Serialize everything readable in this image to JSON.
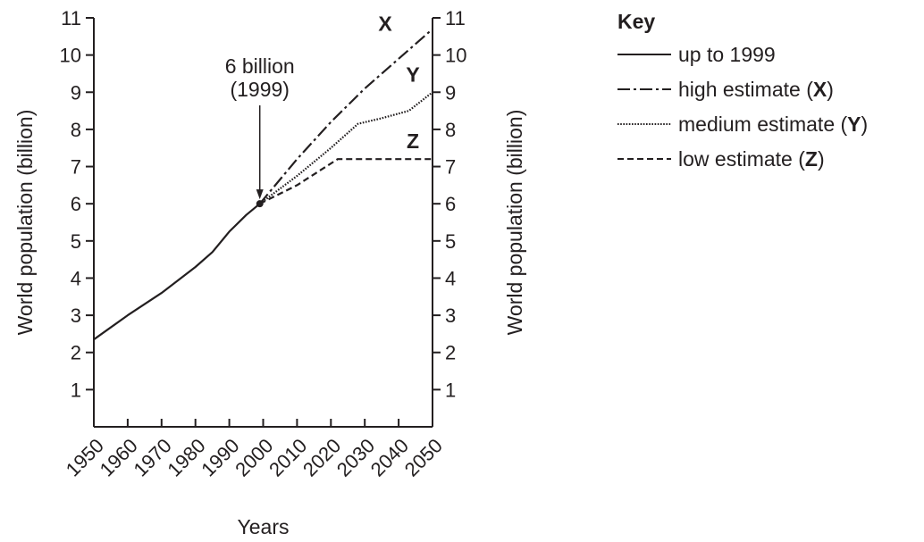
{
  "chart_data": {
    "type": "line",
    "xlabel": "Years",
    "ylabel": "World population (billion)",
    "ylabel_right": "World population (billion)",
    "xlim": [
      1950,
      2050
    ],
    "ylim": [
      0,
      11
    ],
    "x_ticks": [
      "1950",
      "1960",
      "1970",
      "1980",
      "1990",
      "2000",
      "2010",
      "2020",
      "2030",
      "2040",
      "2050"
    ],
    "y_ticks": [
      "1",
      "2",
      "3",
      "4",
      "5",
      "6",
      "7",
      "8",
      "9",
      "10",
      "11"
    ],
    "grid": false,
    "legend_position": "right",
    "legend_title": "Key",
    "series": [
      {
        "name": "up to 1999",
        "style": "solid",
        "x": [
          1950,
          1960,
          1970,
          1980,
          1985,
          1990,
          1995,
          1999
        ],
        "y": [
          2.35,
          3.0,
          3.6,
          4.3,
          4.7,
          5.25,
          5.7,
          6.0
        ]
      },
      {
        "name": "high estimate",
        "letter": "X",
        "style": "dash-dot",
        "x": [
          1999,
          2010,
          2020,
          2030,
          2040,
          2050
        ],
        "y": [
          6.0,
          7.2,
          8.2,
          9.1,
          9.9,
          10.7
        ]
      },
      {
        "name": "medium estimate",
        "letter": "Y",
        "style": "dotted",
        "x": [
          1999,
          2010,
          2020,
          2028,
          2035,
          2043,
          2050
        ],
        "y": [
          6.0,
          6.75,
          7.5,
          8.15,
          8.3,
          8.5,
          9.0
        ]
      },
      {
        "name": "low estimate",
        "letter": "Z",
        "style": "dashed",
        "x": [
          1999,
          2010,
          2022,
          2030,
          2040,
          2050
        ],
        "y": [
          6.0,
          6.5,
          7.2,
          7.2,
          7.2,
          7.2
        ]
      }
    ],
    "annotations": [
      {
        "text_line1": "6 billion",
        "text_line2": "(1999)",
        "x": 1999,
        "y": 6.0
      }
    ],
    "key": [
      {
        "style": "solid",
        "text": "up to 1999",
        "letter": ""
      },
      {
        "style": "dash-dot",
        "text": "high estimate (",
        "letter": "X",
        "suffix": ")"
      },
      {
        "style": "dotted",
        "text": "medium estimate (",
        "letter": "Y",
        "suffix": ")"
      },
      {
        "style": "dashed",
        "text": "low estimate (",
        "letter": "Z",
        "suffix": ")"
      }
    ],
    "color": "#231f20"
  }
}
